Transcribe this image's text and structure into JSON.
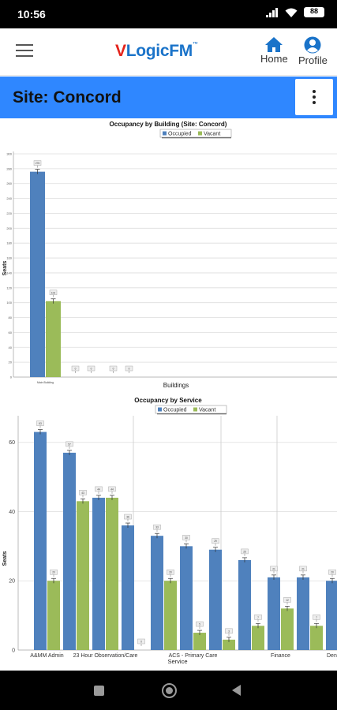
{
  "status_bar": {
    "time": "10:56",
    "battery": "88"
  },
  "app": {
    "logo_v": "V",
    "logo_rest": "LogicFM",
    "logo_tm": "™",
    "home_label": "Home",
    "profile_label": "Profile"
  },
  "site": {
    "title": "Site: Concord"
  },
  "colors": {
    "occupied": "#4f81bd",
    "vacant": "#9bbb59",
    "accent": "#2f87ff"
  },
  "chart_data": [
    {
      "type": "bar",
      "title": "Occupancy by Building (Site: Concord)",
      "legend": [
        "Occupied",
        "Vacant"
      ],
      "xlabel": "Buildings",
      "ylabel": "Seats",
      "ylim": [
        0,
        300
      ],
      "yticks": [
        0,
        20,
        40,
        60,
        80,
        100,
        120,
        140,
        160,
        180,
        200,
        220,
        240,
        260,
        280,
        300
      ],
      "categories": [
        "Main Building",
        "",
        ""
      ],
      "series": [
        {
          "name": "Occupied",
          "values": [
            276,
            0,
            0
          ],
          "labels": [
            "276",
            "0",
            "0"
          ]
        },
        {
          "name": "Vacant",
          "values": [
            102,
            0,
            0
          ],
          "labels": [
            "102",
            "0",
            "0"
          ]
        }
      ]
    },
    {
      "type": "bar",
      "title": "Occupancy by Service",
      "legend": [
        "Occupied",
        "Vacant"
      ],
      "xlabel": "Service",
      "ylabel": "Seats",
      "ylim": [
        0,
        67
      ],
      "yticks": [
        0,
        20,
        40,
        60
      ],
      "categories": [
        "A&MM Admin",
        "",
        "23 Hour Observation/Care",
        "",
        "",
        "ACS - Primary Care",
        "",
        "",
        "Finance",
        "",
        "Dental"
      ],
      "x_tick_labels": [
        "A&MM Admin",
        "23 Hour Observation/Care",
        "ACS - Primary Care",
        "Finance",
        "Dent"
      ],
      "series": [
        {
          "name": "Occupied",
          "values": [
            63,
            57,
            44,
            36,
            33,
            30,
            29,
            26,
            21,
            21,
            20
          ],
          "labels": [
            "63",
            "57",
            "44",
            "36",
            "33",
            "30",
            "29",
            "26",
            "21",
            "21",
            "20"
          ]
        },
        {
          "name": "Vacant",
          "values": [
            20,
            43,
            44,
            0,
            20,
            5,
            3,
            7,
            12,
            7,
            0
          ],
          "labels": [
            "20",
            "43",
            "44",
            "0",
            "20",
            "5",
            "3",
            "7",
            "12",
            "7",
            "0"
          ]
        }
      ]
    }
  ]
}
